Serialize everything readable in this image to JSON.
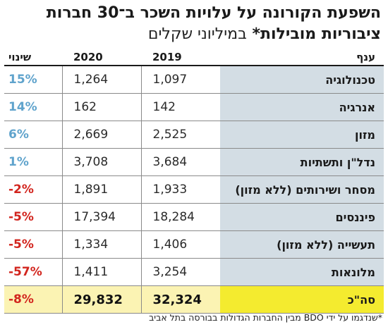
{
  "chart_data": {
    "type": "table",
    "title_line1": "השפעת הקורונה על עלויות השכר ב־30 חברות",
    "title_line2": "ציבוריות מובילות*",
    "title_unit": "במיליוני שקלים",
    "columns": {
      "sector": "ענף",
      "y2019": "2019",
      "y2020": "2020",
      "change": "שינוי"
    },
    "rows": [
      {
        "sector": "טכנולוגיה",
        "y2019": "1,097",
        "y2020": "1,264",
        "change": "15%",
        "sign": "pos"
      },
      {
        "sector": "אנרגיה",
        "y2019": "142",
        "y2020": "162",
        "change": "14%",
        "sign": "pos"
      },
      {
        "sector": "מזון",
        "y2019": "2,525",
        "y2020": "2,669",
        "change": "6%",
        "sign": "pos"
      },
      {
        "sector": "נדל\"ן ותשתיות",
        "y2019": "3,684",
        "y2020": "3,708",
        "change": "1%",
        "sign": "pos"
      },
      {
        "sector": "מסחר ושירותים (ללא מזון)",
        "y2019": "1,933",
        "y2020": "1,891",
        "change": "-2%",
        "sign": "neg"
      },
      {
        "sector": "פיננסים",
        "y2019": "18,284",
        "y2020": "17,394",
        "change": "-5%",
        "sign": "neg"
      },
      {
        "sector": "תעשייה (ללא מזון)",
        "y2019": "1,406",
        "y2020": "1,334",
        "change": "-5%",
        "sign": "neg"
      },
      {
        "sector": "מלונאות",
        "y2019": "3,254",
        "y2020": "1,411",
        "change": "-57%",
        "sign": "neg"
      }
    ],
    "total": {
      "sector": "סה\"כ",
      "y2019": "32,324",
      "y2020": "29,832",
      "change": "-8%",
      "sign": "neg"
    },
    "footnote": "*שנדגמו על ידי BDO מבין החברות הגדולות בבורסה בתל אביב",
    "colors": {
      "sector_bg": "#d3dde4",
      "positive": "#5fa3cc",
      "negative": "#d2251e",
      "total_bg": "#fbf3b3",
      "total_sector_bg": "#f4eb2f"
    }
  }
}
